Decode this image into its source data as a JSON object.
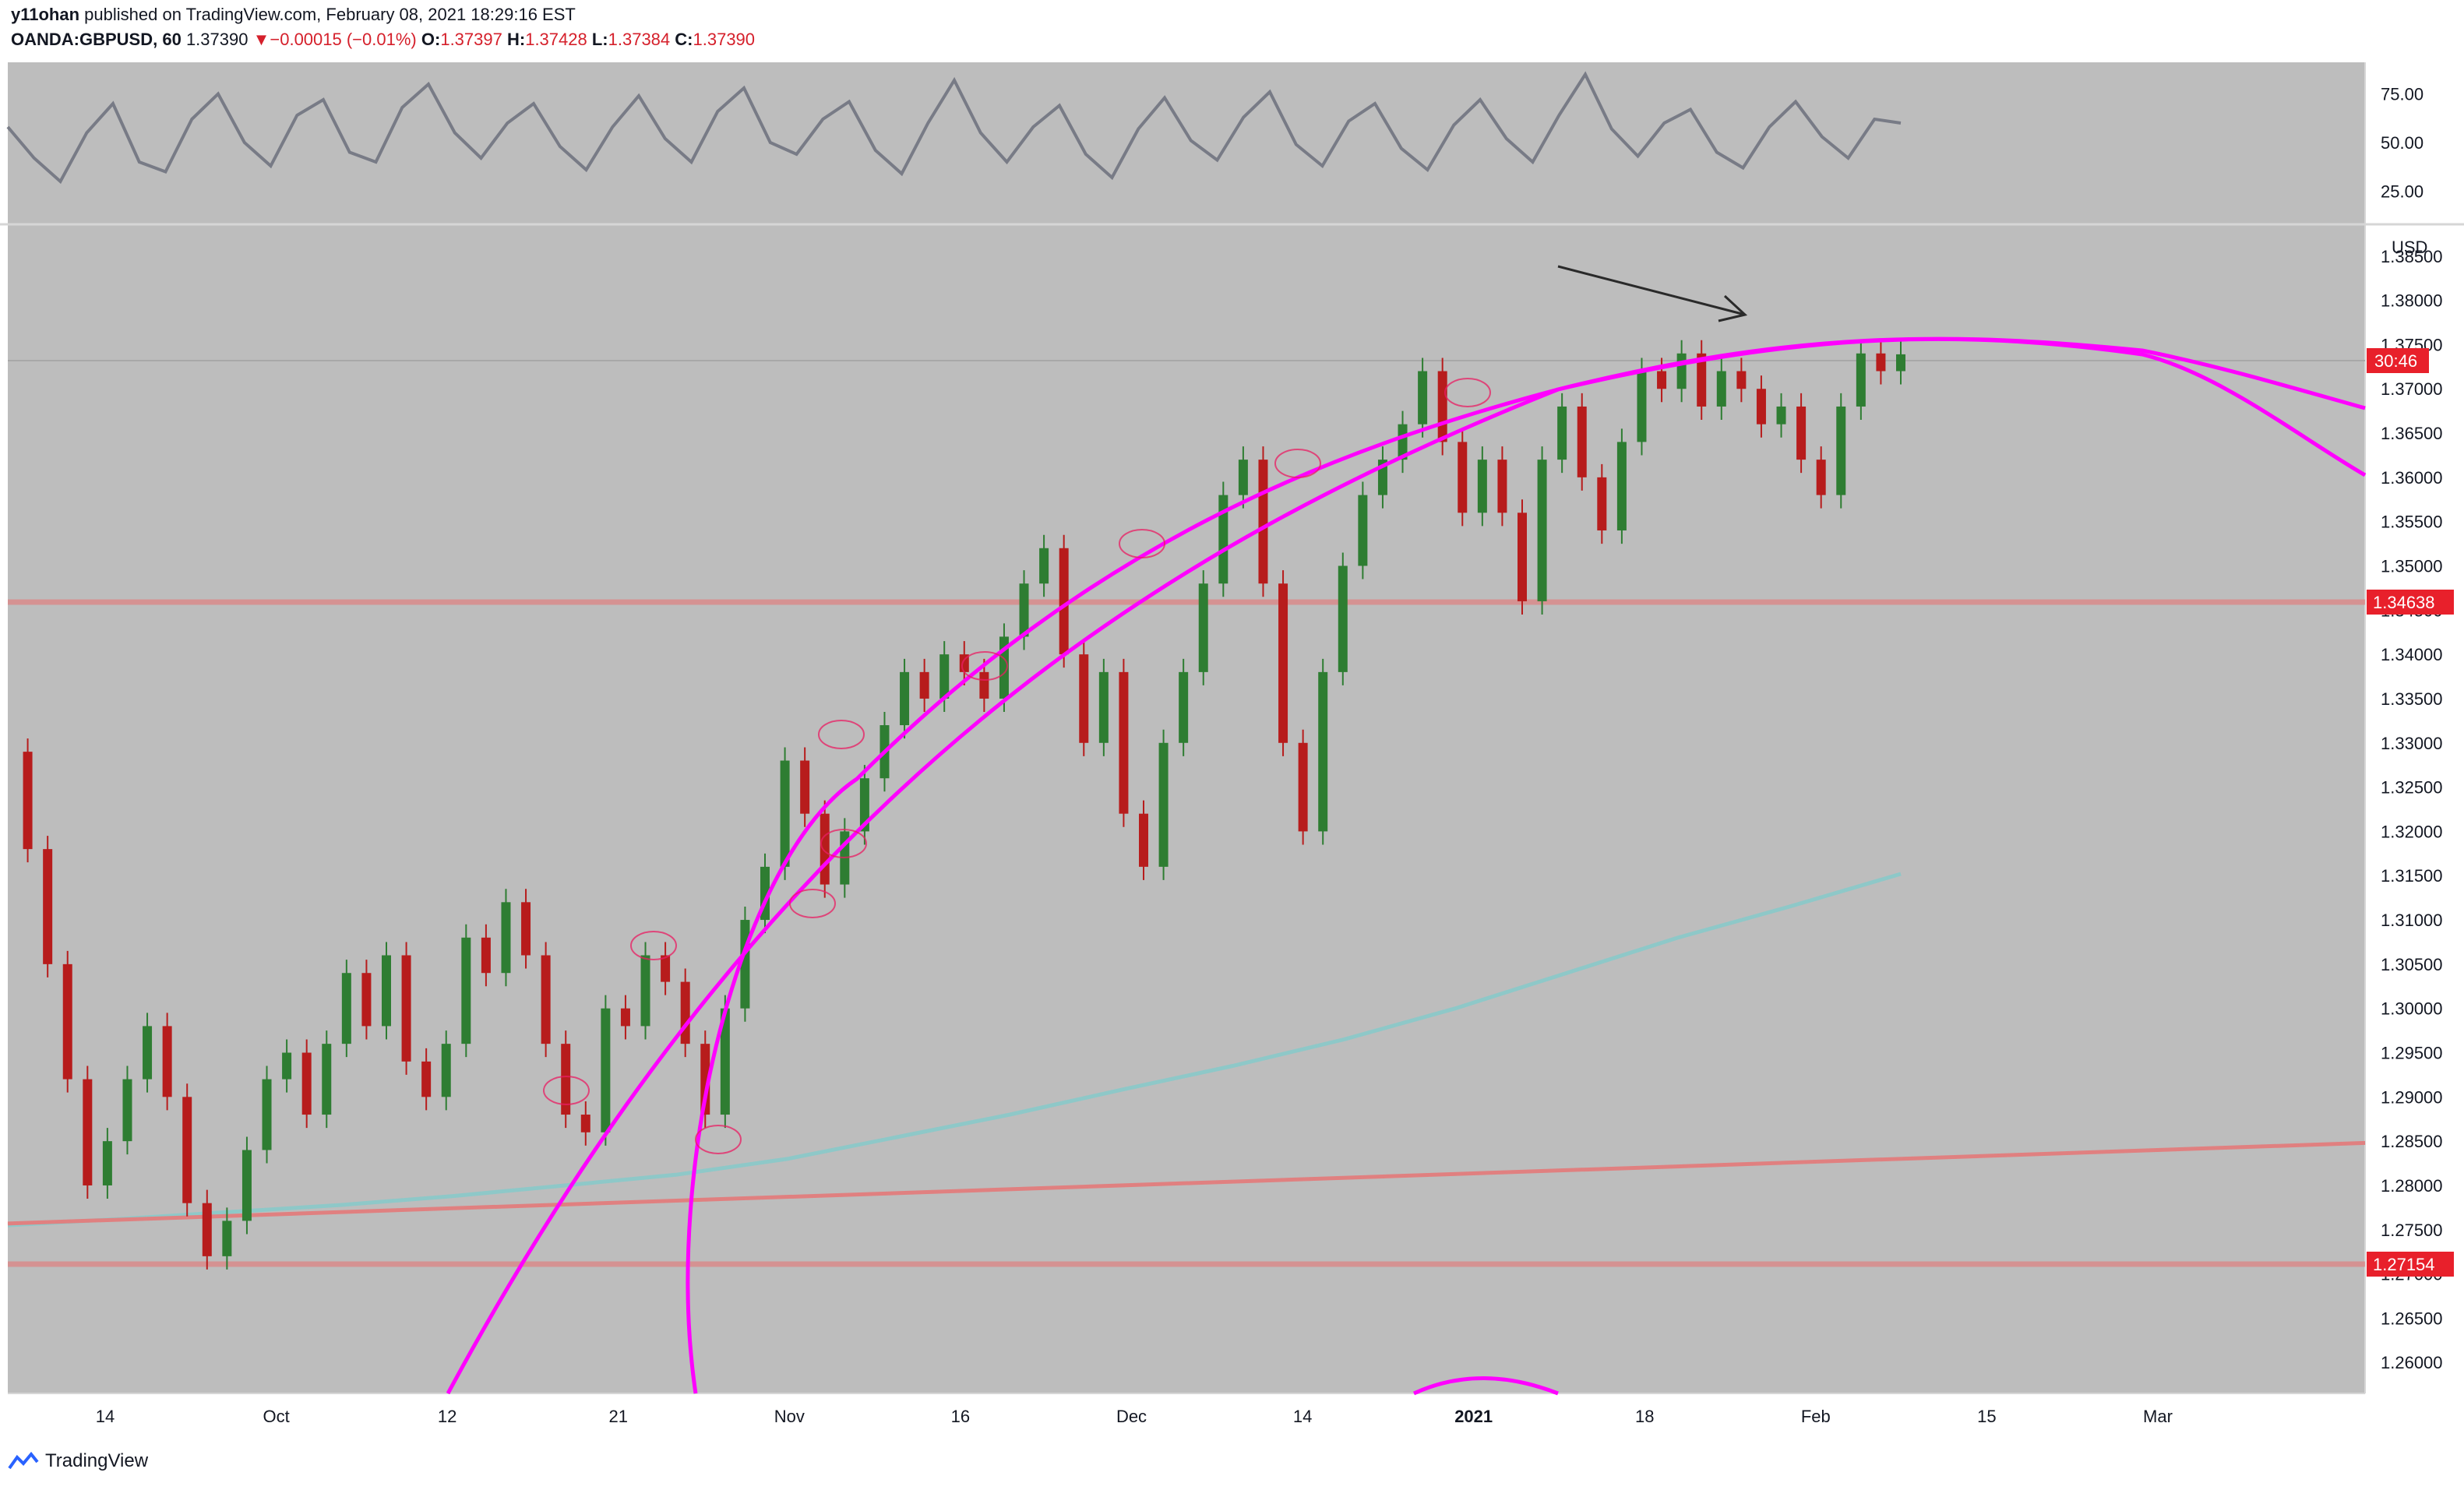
{
  "header": {
    "author": "y11ohan",
    "published": "published on TradingView.com, February 08, 2021 18:29:16 EST",
    "symbol": "OANDA:GBPUSD, 60",
    "last": "1.37390",
    "change": "−0.00015 (−0.01%)",
    "o_label": "O:",
    "o": "1.37397",
    "h_label": "H:",
    "h": "1.37428",
    "l_label": "L:",
    "l": "1.37384",
    "c_label": "C:",
    "c": "1.37390"
  },
  "footer": {
    "brand": "TradingView"
  },
  "colors": {
    "pane_bg": "#bdbdbd",
    "arc": "#ff00ff",
    "support": "#e08080",
    "ma": "#8ec8c8",
    "oscillator": "#787b86",
    "badge": "#e8202b",
    "candle_up": "#2e7d32",
    "candle_down": "#b71c1c"
  },
  "chart_data": [
    {
      "type": "line",
      "pane": "oscillator",
      "yticks": [
        "75.00",
        "50.00",
        "25.00"
      ],
      "ylim": [
        12,
        88
      ],
      "series": [
        {
          "values": [
            58,
            42,
            30,
            55,
            70,
            40,
            35,
            62,
            75,
            50,
            38,
            64,
            72,
            45,
            40,
            68,
            80,
            55,
            42,
            60,
            70,
            48,
            36,
            58,
            74,
            52,
            40,
            66,
            78,
            50,
            44,
            62,
            71,
            46,
            34,
            60,
            82,
            55,
            40,
            58,
            69,
            44,
            32,
            57,
            73,
            51,
            41,
            63,
            76,
            49,
            38,
            61,
            70,
            47,
            36,
            59,
            72,
            52,
            40,
            64,
            85,
            57,
            43,
            60,
            67,
            45,
            37,
            58,
            71,
            53,
            42,
            62,
            60
          ]
        }
      ]
    },
    {
      "type": "line",
      "pane": "price",
      "title": "OANDA:GBPUSD, 60",
      "ylabel": "USD",
      "ylim": [
        1.2565,
        1.3885
      ],
      "yticks": [
        "1.38500",
        "1.38000",
        "1.37500",
        "1.37000",
        "1.36500",
        "1.36000",
        "1.35500",
        "1.35000",
        "1.34500",
        "1.34000",
        "1.33500",
        "1.33000",
        "1.32500",
        "1.32000",
        "1.31500",
        "1.31000",
        "1.30500",
        "1.30000",
        "1.29500",
        "1.29000",
        "1.28500",
        "1.28000",
        "1.27500",
        "1.27000",
        "1.26500",
        "1.26000"
      ],
      "xticks": [
        "14",
        "Oct",
        "12",
        "21",
        "Nov",
        "16",
        "Dec",
        "14",
        "2021",
        "18",
        "Feb",
        "15",
        "Mar"
      ],
      "series": [
        {
          "name": "GBPUSD close",
          "values": [
            1.329,
            1.318,
            1.305,
            1.292,
            1.28,
            1.285,
            1.292,
            1.298,
            1.29,
            1.278,
            1.272,
            1.276,
            1.284,
            1.292,
            1.295,
            1.288,
            1.296,
            1.304,
            1.298,
            1.306,
            1.294,
            1.29,
            1.296,
            1.308,
            1.304,
            1.312,
            1.306,
            1.296,
            1.288,
            1.286,
            1.3,
            1.298,
            1.306,
            1.303,
            1.296,
            1.288,
            1.3,
            1.31,
            1.316,
            1.328,
            1.322,
            1.314,
            1.32,
            1.326,
            1.332,
            1.338,
            1.335,
            1.34,
            1.338,
            1.335,
            1.342,
            1.348,
            1.352,
            1.34,
            1.33,
            1.338,
            1.322,
            1.316,
            1.33,
            1.338,
            1.348,
            1.358,
            1.362,
            1.348,
            1.33,
            1.32,
            1.338,
            1.35,
            1.358,
            1.362,
            1.366,
            1.372,
            1.364,
            1.356,
            1.362,
            1.356,
            1.346,
            1.362,
            1.368,
            1.36,
            1.354,
            1.364,
            1.372,
            1.37,
            1.374,
            1.368,
            1.372,
            1.37,
            1.366,
            1.368,
            1.362,
            1.358,
            1.368,
            1.374,
            1.372,
            1.3739
          ]
        },
        {
          "name": "MA",
          "values": [
            1.2755,
            1.2762,
            1.277,
            1.2778,
            1.2788,
            1.28,
            1.2812,
            1.283,
            1.2855,
            1.288,
            1.2908,
            1.2935,
            1.2965,
            1.3,
            1.304,
            1.308,
            1.3115,
            1.3152
          ]
        },
        {
          "name": "Support trendline",
          "values": [
            1.2757,
            1.2848
          ]
        }
      ],
      "price_labels": [
        "1.34638",
        "1.27154"
      ],
      "current_label": "30:46"
    }
  ]
}
